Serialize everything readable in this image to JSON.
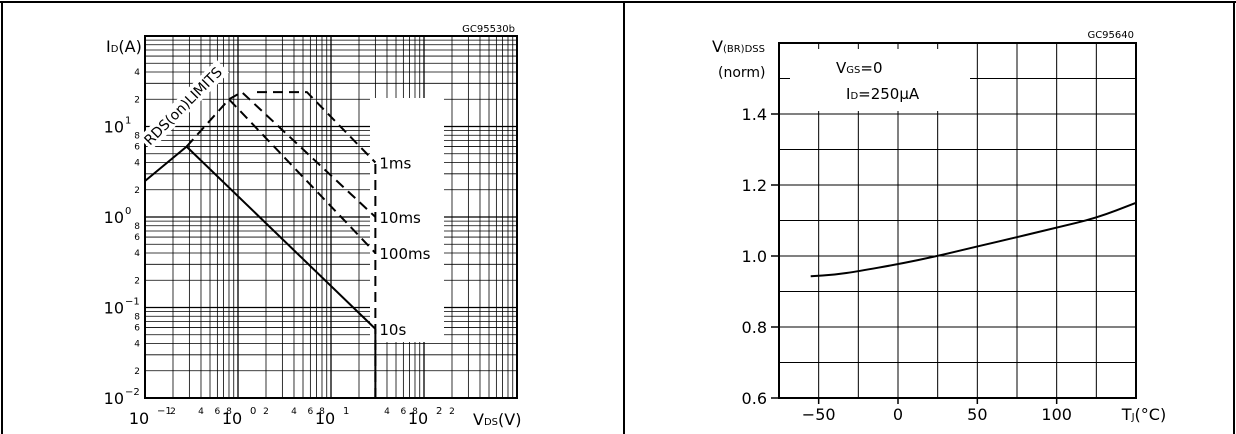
{
  "chart_data": [
    {
      "type": "line",
      "code": "GC95530b",
      "xscale": "log",
      "yscale": "log",
      "xlim": [
        0.1,
        1000
      ],
      "ylim": [
        0.01,
        100
      ],
      "x_ticks": [
        {
          "v": 0.1,
          "base": "10",
          "exp": "−1"
        },
        {
          "v": 1,
          "base": "10",
          "exp": "0"
        },
        {
          "v": 10,
          "base": "10",
          "exp": "1"
        },
        {
          "v": 100,
          "base": "10",
          "exp": "2"
        }
      ],
      "x_minor_labels": [
        {
          "v": 0.2,
          "t": "2"
        },
        {
          "v": 0.4,
          "t": "4"
        },
        {
          "v": 0.6,
          "t": "6"
        },
        {
          "v": 0.8,
          "t": "8"
        },
        {
          "v": 2,
          "t": "2"
        },
        {
          "v": 4,
          "t": "4"
        },
        {
          "v": 6,
          "t": "6"
        },
        {
          "v": 8,
          "t": "8"
        },
        {
          "v": 40,
          "t": "4"
        },
        {
          "v": 60,
          "t": "6"
        },
        {
          "v": 80,
          "t": "8"
        },
        {
          "v": 200,
          "t": "2"
        }
      ],
      "y_ticks": [
        {
          "v": 0.01,
          "base": "10",
          "exp": "−2"
        },
        {
          "v": 0.1,
          "base": "10",
          "exp": "−1"
        },
        {
          "v": 1,
          "base": "10",
          "exp": "0"
        },
        {
          "v": 10,
          "base": "10",
          "exp": "1"
        }
      ],
      "y_minor_labels": [
        {
          "v": 0.02,
          "t": "2"
        },
        {
          "v": 0.04,
          "t": "4"
        },
        {
          "v": 0.06,
          "t": "6"
        },
        {
          "v": 0.08,
          "t": "8"
        },
        {
          "v": 0.2,
          "t": "2"
        },
        {
          "v": 0.4,
          "t": "4"
        },
        {
          "v": 0.6,
          "t": "6"
        },
        {
          "v": 0.8,
          "t": "8"
        },
        {
          "v": 2,
          "t": "2"
        },
        {
          "v": 4,
          "t": "4"
        },
        {
          "v": 6,
          "t": "6"
        },
        {
          "v": 8,
          "t": "8"
        },
        {
          "v": 20,
          "t": "2"
        },
        {
          "v": 40,
          "t": "4"
        }
      ],
      "ylabel": {
        "main": "I",
        "sub": "D",
        "tail": "(A)"
      },
      "xlabel": {
        "main": "V",
        "sub": "DS",
        "tail": "(V)"
      },
      "limit_label": "RDS(on)LIMITS",
      "series": [
        {
          "name": "10s",
          "style": "solid",
          "points": [
            [
              0.1,
              2.5
            ],
            [
              0.28,
              6
            ],
            [
              30,
              0.058
            ]
          ]
        },
        {
          "name": "100ms",
          "style": "dashed",
          "points": [
            [
              0.28,
              6
            ],
            [
              0.8,
              20
            ],
            [
              30,
              0.4
            ]
          ]
        },
        {
          "name": "10ms",
          "style": "dashed",
          "points": [
            [
              0.8,
              20
            ],
            [
              1.1,
              24
            ],
            [
              30,
              1.0
            ]
          ]
        },
        {
          "name": "1ms",
          "style": "dashed",
          "points": [
            [
              1.6,
              24
            ],
            [
              5.5,
              24
            ],
            [
              30,
              4.0
            ]
          ]
        }
      ],
      "vertical_limit": {
        "x": 30,
        "y_range": [
          0.01,
          4.0
        ]
      }
    },
    {
      "type": "line",
      "code": "GC95640",
      "xlim": [
        -75,
        150
      ],
      "ylim": [
        0.6,
        1.6
      ],
      "x_ticks": [
        -50,
        0,
        50,
        100
      ],
      "x_tick_labels": [
        "−50",
        "0",
        "50",
        "100"
      ],
      "y_ticks": [
        0.6,
        0.8,
        1.0,
        1.2,
        1.4
      ],
      "y_tick_labels": [
        "0.6",
        "0.8",
        "1.0",
        "1.2",
        "1.4"
      ],
      "ylabel": {
        "main": "V",
        "sub": "(BR)DSS",
        "line2": "(norm)"
      },
      "xlabel": {
        "main": "T",
        "sub": "J",
        "tail": "(°C)"
      },
      "annotation": [
        {
          "main": "V",
          "sub": "GS",
          "tail": "=0"
        },
        {
          "main": "I",
          "sub": "D",
          "tail": "=250μA"
        }
      ],
      "series": [
        {
          "points": [
            [
              -55,
              0.943
            ],
            [
              -40,
              0.947
            ],
            [
              -25,
              0.957
            ],
            [
              0,
              0.977
            ],
            [
              25,
              1.0
            ],
            [
              50,
              1.027
            ],
            [
              75,
              1.053
            ],
            [
              100,
              1.08
            ],
            [
              125,
              1.107
            ],
            [
              150,
              1.15
            ]
          ]
        }
      ]
    }
  ]
}
